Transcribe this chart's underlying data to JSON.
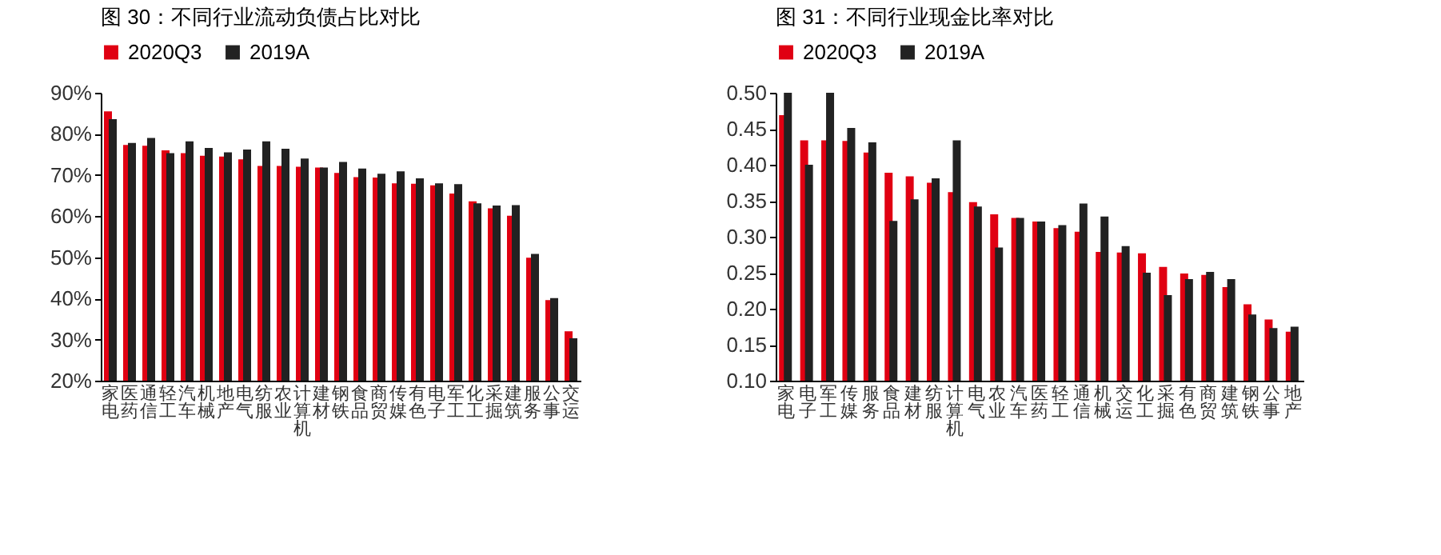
{
  "chart_data": [
    {
      "type": "bar",
      "title": "图 30：不同行业流动负债占比对比",
      "categories": [
        "家电",
        "医药",
        "通信",
        "轻工",
        "汽车",
        "机械",
        "地产",
        "电气",
        "纺服",
        "农业",
        "计算机",
        "建材",
        "钢铁",
        "食品",
        "商贸",
        "传媒",
        "有色",
        "电子",
        "军工",
        "化工",
        "采掘",
        "建筑",
        "服务",
        "公事",
        "交运"
      ],
      "series": [
        {
          "name": "2020Q3",
          "color": "#e00012",
          "values": [
            85.5,
            77.3,
            77.1,
            76,
            75.3,
            74.7,
            74.5,
            73.8,
            72.2,
            72.2,
            72,
            71.8,
            70.5,
            69.5,
            69.4,
            68,
            67.9,
            67.5,
            65.5,
            63.6,
            61.9,
            60.1,
            49.9,
            39.6,
            32
          ]
        },
        {
          "name": "2019A",
          "color": "#222222",
          "values": [
            83.6,
            77.8,
            79,
            75.3,
            78.2,
            76.6,
            75.5,
            76.2,
            78.2,
            76.4,
            74,
            71.8,
            73.2,
            71.6,
            70.3,
            70.9,
            69.2,
            68,
            67.8,
            63.1,
            62.6,
            62.7,
            50.8,
            40.1,
            30.3
          ]
        }
      ],
      "ylim": [
        20,
        90
      ],
      "yticks": [
        {
          "value": 20,
          "label": "20%"
        },
        {
          "value": 30,
          "label": "30%"
        },
        {
          "value": 40,
          "label": "40%"
        },
        {
          "value": 50,
          "label": "50%"
        },
        {
          "value": 60,
          "label": "60%"
        },
        {
          "value": 70,
          "label": "70%"
        },
        {
          "value": 80,
          "label": "80%"
        },
        {
          "value": 90,
          "label": "90%"
        }
      ],
      "legend": "top"
    },
    {
      "type": "bar",
      "title": "图 31：不同行业现金比率对比",
      "categories": [
        "家电",
        "电子",
        "军工",
        "传媒",
        "服务",
        "食品",
        "建材",
        "纺服",
        "计算机",
        "电气",
        "农业",
        "汽车",
        "医药",
        "轻工",
        "通信",
        "机械",
        "交运",
        "化工",
        "采掘",
        "有色",
        "商贸",
        "建筑",
        "钢铁",
        "公事",
        "地产"
      ],
      "series": [
        {
          "name": "2020Q3",
          "color": "#e00012",
          "values": [
            0.469,
            0.434,
            0.434,
            0.433,
            0.417,
            0.389,
            0.384,
            0.375,
            0.362,
            0.348,
            0.331,
            0.326,
            0.321,
            0.312,
            0.307,
            0.279,
            0.278,
            0.277,
            0.258,
            0.249,
            0.247,
            0.23,
            0.206,
            0.185,
            0.168
          ]
        },
        {
          "name": "2019A",
          "color": "#222222",
          "values": [
            0.5,
            0.4,
            0.5,
            0.451,
            0.431,
            0.322,
            0.352,
            0.381,
            0.434,
            0.342,
            0.285,
            0.326,
            0.321,
            0.316,
            0.346,
            0.328,
            0.287,
            0.25,
            0.219,
            0.241,
            0.251,
            0.241,
            0.192,
            0.173,
            0.175
          ]
        }
      ],
      "ylim": [
        0.1,
        0.5
      ],
      "yticks": [
        {
          "value": 0.1,
          "label": "0.10"
        },
        {
          "value": 0.15,
          "label": "0.15"
        },
        {
          "value": 0.2,
          "label": "0.20"
        },
        {
          "value": 0.25,
          "label": "0.25"
        },
        {
          "value": 0.3,
          "label": "0.30"
        },
        {
          "value": 0.35,
          "label": "0.35"
        },
        {
          "value": 0.4,
          "label": "0.40"
        },
        {
          "value": 0.45,
          "label": "0.45"
        },
        {
          "value": 0.5,
          "label": "0.50"
        }
      ],
      "legend": "top"
    }
  ]
}
